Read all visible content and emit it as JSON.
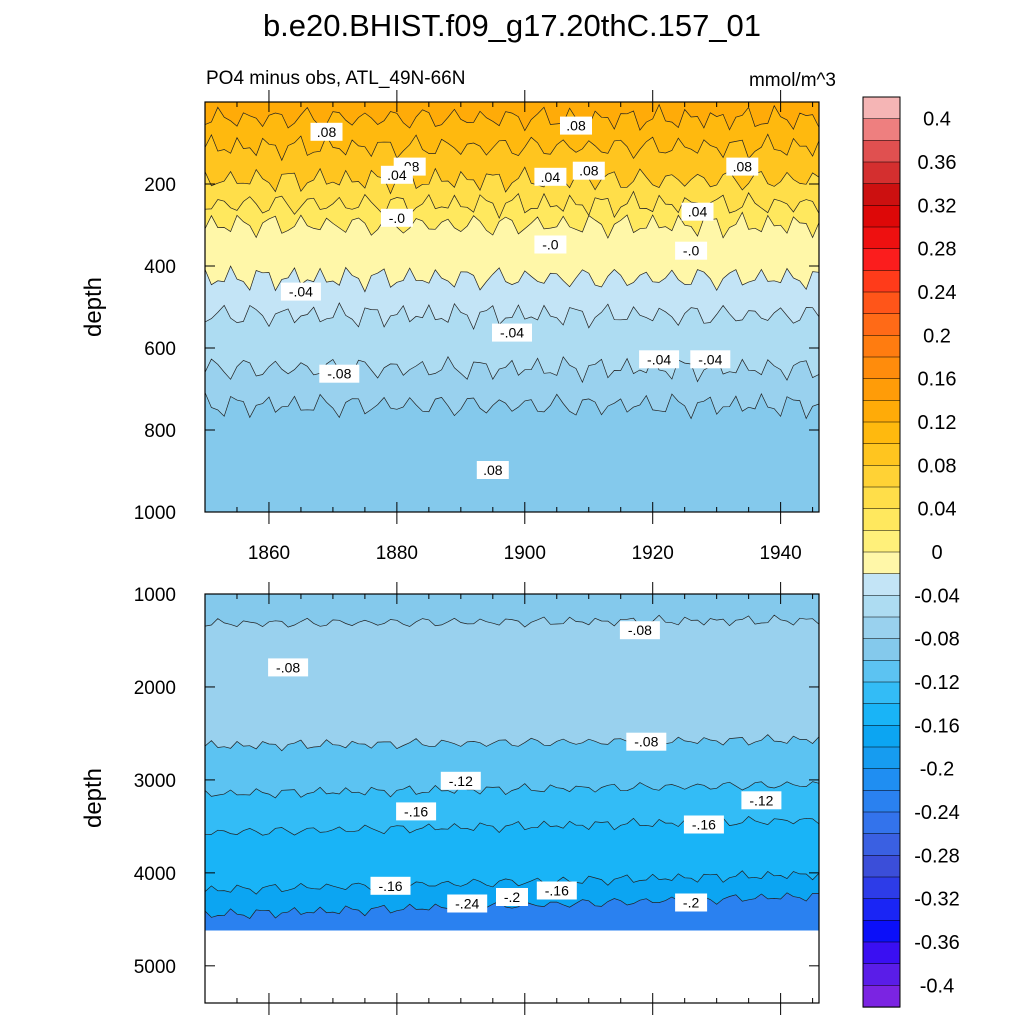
{
  "chart_data": {
    "type": "contour",
    "title": "b.e20.BHIST.f09_g17.20thC.157_01",
    "subtitle_left": "PO4 minus obs, ATL_49N-66N",
    "units": "mmol/m^3",
    "xlabel": "",
    "ylabel": "depth",
    "xlim": [
      1850,
      1946
    ],
    "x_ticks": [
      1860,
      1880,
      1900,
      1920,
      1940
    ],
    "colorbar": {
      "levels": [
        -0.4,
        -0.38,
        -0.36,
        -0.34,
        -0.32,
        -0.3,
        -0.28,
        -0.26,
        -0.24,
        -0.22,
        -0.2,
        -0.18,
        -0.16,
        -0.14,
        -0.12,
        -0.1,
        -0.08,
        -0.06,
        -0.04,
        -0.02,
        0,
        0.02,
        0.04,
        0.06,
        0.08,
        0.1,
        0.12,
        0.14,
        0.16,
        0.18,
        0.2,
        0.22,
        0.24,
        0.26,
        0.28,
        0.3,
        0.32,
        0.34,
        0.36,
        0.38,
        0.4
      ],
      "tick_labels": [
        "0.4",
        "0.36",
        "0.32",
        "0.28",
        "0.24",
        "0.2",
        "0.16",
        "0.12",
        "0.08",
        "0.04",
        "0",
        "-0.04",
        "-0.08",
        "-0.12",
        "-0.16",
        "-0.2",
        "-0.24",
        "-0.28",
        "-0.32",
        "-0.36",
        "-0.4"
      ],
      "colors_top_to_bottom": [
        "#f5b5b5",
        "#ee7f7f",
        "#e05050",
        "#d42f2f",
        "#cc1010",
        "#dd0808",
        "#ee1010",
        "#fb1d1d",
        "#ff3b1a",
        "#ff5519",
        "#ff6a17",
        "#ff7c10",
        "#ff8c0c",
        "#ff9c08",
        "#ffab08",
        "#ffb90e",
        "#ffc51f",
        "#ffd235",
        "#ffde49",
        "#ffe85e",
        "#fff07a",
        "#fff7a8",
        "#c3e4f6",
        "#addcf2",
        "#99d1ee",
        "#84c9ec",
        "#5cc3f2",
        "#33bcf6",
        "#19b4f7",
        "#0ca5f2",
        "#169cf0",
        "#1f8ef2",
        "#2a81f0",
        "#3373ec",
        "#3a60e2",
        "#3b4ed9",
        "#2d3ce8",
        "#1a25f5",
        "#0b0ff9",
        "#3a0ff2",
        "#5a1de8",
        "#7b24e2"
      ]
    },
    "panels": [
      {
        "name": "upper",
        "ylim": [
          0,
          1000
        ],
        "y_ticks": [
          200,
          400,
          600,
          800,
          1000
        ],
        "fill_bands_depth": [
          {
            "from": 0,
            "to": 40,
            "value": 0.12
          },
          {
            "from": 40,
            "to": 110,
            "value": 0.1
          },
          {
            "from": 110,
            "to": 190,
            "value": 0.08
          },
          {
            "from": 190,
            "to": 250,
            "value": 0.04
          },
          {
            "from": 250,
            "to": 300,
            "value": 0.02
          },
          {
            "from": 300,
            "to": 430,
            "value": -0.02
          },
          {
            "from": 430,
            "to": 520,
            "value": -0.04
          },
          {
            "from": 520,
            "to": 650,
            "value": -0.06
          },
          {
            "from": 650,
            "to": 740,
            "value": -0.08
          },
          {
            "from": 740,
            "to": 1000,
            "value": -0.1
          }
        ],
        "contour_labels": [
          {
            "text": ".08",
            "x": 1869,
            "depth": 75
          },
          {
            "text": ".08",
            "x": 1908,
            "depth": 60
          },
          {
            "text": ".08",
            "x": 1882,
            "depth": 160
          },
          {
            "text": ".08",
            "x": 1910,
            "depth": 170
          },
          {
            "text": ".08",
            "x": 1934,
            "depth": 160
          },
          {
            "text": ".04",
            "x": 1880,
            "depth": 180
          },
          {
            "text": ".04",
            "x": 1904,
            "depth": 185
          },
          {
            "text": ".04",
            "x": 1927,
            "depth": 270
          },
          {
            "text": "-.0",
            "x": 1880,
            "depth": 285
          },
          {
            "text": "-.0",
            "x": 1904,
            "depth": 350
          },
          {
            "text": "-.0",
            "x": 1926,
            "depth": 365
          },
          {
            "text": "-.04",
            "x": 1865,
            "depth": 465
          },
          {
            "text": "-.04",
            "x": 1898,
            "depth": 565
          },
          {
            "text": "-.04",
            "x": 1921,
            "depth": 630
          },
          {
            "text": "-.04",
            "x": 1929,
            "depth": 630
          },
          {
            "text": "-.08",
            "x": 1871,
            "depth": 665
          },
          {
            "text": ".08",
            "x": 1895,
            "depth": 900
          }
        ]
      },
      {
        "name": "lower",
        "ylim": [
          1000,
          5400
        ],
        "y_ticks": [
          1000,
          2000,
          3000,
          4000,
          5000
        ],
        "fill_bands_depth": [
          {
            "from": 1000,
            "to": 1300,
            "value": -0.1
          },
          {
            "from": 1300,
            "to": 2600,
            "value": -0.08
          },
          {
            "from": 2600,
            "to": 3100,
            "value": -0.12
          },
          {
            "from": 3100,
            "to": 3500,
            "value": -0.14
          },
          {
            "from": 3500,
            "to": 4100,
            "value": -0.16
          },
          {
            "from": 4100,
            "to": 4350,
            "value": -0.18
          },
          {
            "from": 4350,
            "to": 4620,
            "value": -0.24
          }
        ],
        "no_data_below": 4620,
        "contour_labels": [
          {
            "text": "-.08",
            "x": 1863,
            "depth": 1800
          },
          {
            "text": "-.08",
            "x": 1918,
            "depth": 1400
          },
          {
            "text": "-.08",
            "x": 1919,
            "depth": 2600
          },
          {
            "text": "-.12",
            "x": 1890,
            "depth": 3020
          },
          {
            "text": "-.12",
            "x": 1937,
            "depth": 3230
          },
          {
            "text": "-.16",
            "x": 1883,
            "depth": 3350
          },
          {
            "text": "-.16",
            "x": 1928,
            "depth": 3490
          },
          {
            "text": "-.16",
            "x": 1879,
            "depth": 4150
          },
          {
            "text": "-.2",
            "x": 1898,
            "depth": 4270
          },
          {
            "text": "-.16",
            "x": 1905,
            "depth": 4200
          },
          {
            "text": "-.2",
            "x": 1926,
            "depth": 4330
          },
          {
            "text": "-.24",
            "x": 1891,
            "depth": 4340
          }
        ]
      }
    ]
  }
}
